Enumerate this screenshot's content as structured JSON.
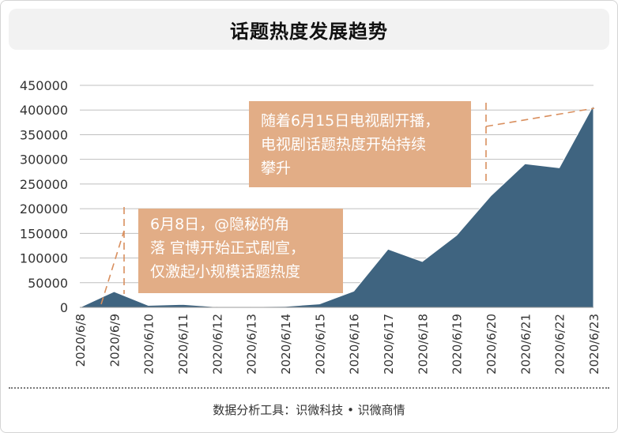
{
  "title": "话题热度发展趋势",
  "footer": "数据分析工具：识微科技 • 识微商情",
  "colors": {
    "area": "#3f6480",
    "annotation_box": "#e2ad86",
    "annotation_line": "#d98f5e",
    "grid": "#bfbfbf"
  },
  "annotations": [
    {
      "lines": [
        "6月8日，@隐秘的角",
        "落 官博开始正式剧宣，",
        "仅激起小规模话题热度"
      ]
    },
    {
      "lines": [
        "随着6月15日电视剧开播，",
        "电视剧话题热度开始持续",
        "攀升"
      ]
    }
  ],
  "chart_data": {
    "type": "area",
    "title": "话题热度发展趋势",
    "xlabel": "",
    "ylabel": "",
    "categories": [
      "2020/6/8",
      "2020/6/9",
      "2020/6/10",
      "2020/6/11",
      "2020/6/12",
      "2020/6/13",
      "2020/6/14",
      "2020/6/15",
      "2020/6/16",
      "2020/6/17",
      "2020/6/18",
      "2020/6/19",
      "2020/6/20",
      "2020/6/21",
      "2020/6/22",
      "2020/6/23"
    ],
    "series": [
      {
        "values": [
          0,
          32000,
          4000,
          6000,
          1000,
          1500,
          2000,
          7000,
          33000,
          118000,
          93000,
          146000,
          226000,
          291000,
          283000,
          410000
        ]
      }
    ],
    "y_ticks": [
      "0",
      "50000",
      "100000",
      "150000",
      "200000",
      "250000",
      "300000",
      "350000",
      "400000",
      "450000"
    ],
    "ylim": [
      0,
      450000
    ],
    "grid": true,
    "legend": "none"
  }
}
